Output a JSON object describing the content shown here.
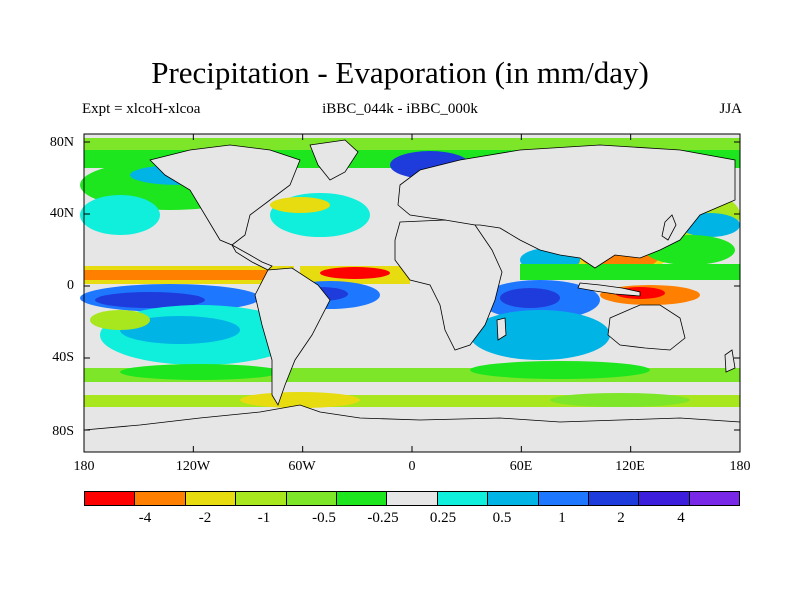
{
  "header": {
    "title": "Precipitation - Evaporation (in mm/day)",
    "left": "Expt = xlcoH-xlcoa",
    "center": "iBBC_044k - iBBC_000k",
    "right": "JJA"
  },
  "axes": {
    "lat_labels": [
      "80N",
      "40N",
      "0",
      "40S",
      "80S"
    ],
    "lon_labels": [
      "180",
      "120W",
      "60W",
      "0",
      "60E",
      "120E",
      "180"
    ]
  },
  "colorbar": {
    "colors": [
      "#ff0000",
      "#ff8000",
      "#e6dc10",
      "#a8e61e",
      "#7ee628",
      "#1ee61e",
      "#e6e6e6",
      "#10eedc",
      "#00b4e6",
      "#1e78ff",
      "#1e3cdc",
      "#3c1edc",
      "#7828e6"
    ],
    "labels": [
      "-4",
      "-2",
      "-1",
      "-0.5",
      "-0.25",
      "0.25",
      "0.5",
      "1",
      "2",
      "4"
    ]
  }
}
